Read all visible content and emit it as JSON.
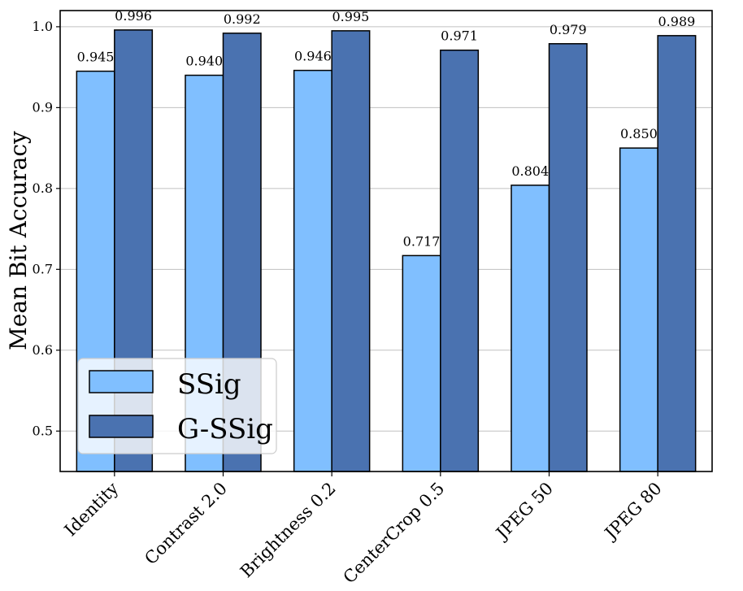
{
  "chart_data": {
    "type": "bar",
    "title": "",
    "xlabel": "",
    "ylabel": "Mean Bit Accuracy",
    "ylim": [
      0.45,
      1.02
    ],
    "yticks": [
      0.5,
      0.6,
      0.7,
      0.8,
      0.9,
      1.0
    ],
    "ytick_labels": [
      "0.5",
      "0.6",
      "0.7",
      "0.8",
      "0.9",
      "1.0"
    ],
    "grid": "horizontal",
    "legend_position": "lower-left",
    "categories": [
      "Identity",
      "Contrast 2.0",
      "Brightness 0.2",
      "CenterCrop 0.5",
      "JPEG 50",
      "JPEG 80"
    ],
    "series": [
      {
        "name": "SSig",
        "color": "#80bfff",
        "values": [
          0.945,
          0.94,
          0.946,
          0.717,
          0.804,
          0.85
        ],
        "labels": [
          "0.945",
          "0.940",
          "0.946",
          "0.717",
          "0.804",
          "0.850"
        ]
      },
      {
        "name": "G-SSig",
        "color": "#4a72b0",
        "values": [
          0.996,
          0.992,
          0.995,
          0.971,
          0.979,
          0.989
        ],
        "labels": [
          "0.996",
          "0.992",
          "0.995",
          "0.971",
          "0.979",
          "0.989"
        ]
      }
    ]
  }
}
